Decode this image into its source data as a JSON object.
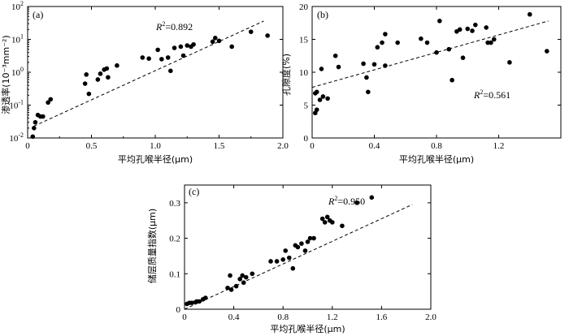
{
  "chart_data": [
    {
      "type": "scatter",
      "panel": "(a)",
      "xlabel": "平均孔喉半径(μm)",
      "ylabel": "渗透率(10⁻³mm⁻²)",
      "xlim": [
        0,
        2.0
      ],
      "ylim": [
        0.01,
        100
      ],
      "yscale": "log",
      "xticks": [
        "0",
        "0.5",
        "1.0",
        "1.5",
        "2.0"
      ],
      "yticks": [
        {
          "base": "10",
          "exp": "-2"
        },
        {
          "base": "10",
          "exp": "-1"
        },
        {
          "base": "10",
          "exp": "0"
        },
        {
          "base": "10",
          "exp": "1"
        },
        {
          "base": "10",
          "exp": "2"
        }
      ],
      "annotation": {
        "var": "R",
        "exp": "2",
        "value": "=0.892"
      },
      "fit_line": {
        "x": [
          0.05,
          1.85
        ],
        "y": [
          0.023,
          36
        ]
      },
      "points": [
        [
          0.04,
          0.011
        ],
        [
          0.05,
          0.02
        ],
        [
          0.06,
          0.03
        ],
        [
          0.08,
          0.05
        ],
        [
          0.1,
          0.045
        ],
        [
          0.12,
          0.045
        ],
        [
          0.16,
          0.12
        ],
        [
          0.18,
          0.15
        ],
        [
          0.45,
          0.45
        ],
        [
          0.46,
          0.85
        ],
        [
          0.48,
          0.22
        ],
        [
          0.55,
          0.6
        ],
        [
          0.57,
          0.9
        ],
        [
          0.6,
          1.2
        ],
        [
          0.62,
          1.3
        ],
        [
          0.63,
          0.7
        ],
        [
          0.7,
          1.6
        ],
        [
          0.9,
          2.8
        ],
        [
          0.95,
          2.6
        ],
        [
          1.02,
          4.8
        ],
        [
          1.05,
          2.5
        ],
        [
          1.1,
          2.8
        ],
        [
          1.12,
          1.1
        ],
        [
          1.15,
          5.5
        ],
        [
          1.2,
          6.0
        ],
        [
          1.22,
          3.2
        ],
        [
          1.25,
          6.5
        ],
        [
          1.28,
          6.0
        ],
        [
          1.3,
          7.0
        ],
        [
          1.45,
          8.5
        ],
        [
          1.47,
          11.0
        ],
        [
          1.5,
          9.0
        ],
        [
          1.6,
          6.0
        ],
        [
          1.75,
          17.0
        ],
        [
          1.88,
          13.0
        ]
      ]
    },
    {
      "type": "scatter",
      "panel": "(b)",
      "xlabel": "平均孔喉半径(μm)",
      "ylabel": "孔隙度(%)",
      "xlim": [
        0,
        1.6
      ],
      "ylim": [
        0,
        20
      ],
      "xticks": [
        "0",
        "0.4",
        "0.8",
        "1.2"
      ],
      "xtick_values": [
        0,
        0.4,
        0.8,
        1.2
      ],
      "yticks": [
        "0",
        "5",
        "10",
        "15",
        "20"
      ],
      "ytick_values": [
        0,
        5,
        10,
        15,
        20
      ],
      "annotation": {
        "var": "R",
        "exp": "2",
        "value": "=0.561"
      },
      "fit_line": {
        "x": [
          0.0,
          1.52
        ],
        "y": [
          7.7,
          17.8
        ]
      },
      "points": [
        [
          0.02,
          3.8
        ],
        [
          0.02,
          6.8
        ],
        [
          0.03,
          4.3
        ],
        [
          0.03,
          7.0
        ],
        [
          0.05,
          5.8
        ],
        [
          0.07,
          6.3
        ],
        [
          0.1,
          6.0
        ],
        [
          0.06,
          10.5
        ],
        [
          0.15,
          12.5
        ],
        [
          0.17,
          10.8
        ],
        [
          0.33,
          11.3
        ],
        [
          0.35,
          9.2
        ],
        [
          0.36,
          7.0
        ],
        [
          0.4,
          11.2
        ],
        [
          0.42,
          13.8
        ],
        [
          0.45,
          14.5
        ],
        [
          0.47,
          15.8
        ],
        [
          0.47,
          11.0
        ],
        [
          0.55,
          14.5
        ],
        [
          0.7,
          15.1
        ],
        [
          0.74,
          14.5
        ],
        [
          0.8,
          13.0
        ],
        [
          0.82,
          17.8
        ],
        [
          0.88,
          13.5
        ],
        [
          0.9,
          8.8
        ],
        [
          0.93,
          16.2
        ],
        [
          0.95,
          16.5
        ],
        [
          0.97,
          12.2
        ],
        [
          1.0,
          16.6
        ],
        [
          1.03,
          16.3
        ],
        [
          1.05,
          17.2
        ],
        [
          1.12,
          16.8
        ],
        [
          1.13,
          14.5
        ],
        [
          1.15,
          14.5
        ],
        [
          1.17,
          15.0
        ],
        [
          1.27,
          11.5
        ],
        [
          1.4,
          18.8
        ],
        [
          1.51,
          13.2
        ]
      ]
    },
    {
      "type": "scatter",
      "panel": "(c)",
      "xlabel": "平均孔喉半径(μm)",
      "ylabel": "储层质量指数(μm)",
      "xlim": [
        0,
        2.0
      ],
      "ylim": [
        0,
        0.35
      ],
      "xticks": [
        "0",
        "0.4",
        "0.8",
        "1.2",
        "1.6",
        "2.0"
      ],
      "xtick_values": [
        0,
        0.4,
        0.8,
        1.2,
        1.6,
        2.0
      ],
      "yticks": [
        "0",
        "0.1",
        "0.2",
        "0.3"
      ],
      "ytick_values": [
        0,
        0.1,
        0.2,
        0.3
      ],
      "annotation": {
        "var": "R",
        "exp": "2",
        "value": "=0.950"
      },
      "fit_line": {
        "x": [
          0.0,
          1.85
        ],
        "y": [
          0.0,
          0.295
        ]
      },
      "points": [
        [
          0.02,
          0.015
        ],
        [
          0.04,
          0.018
        ],
        [
          0.06,
          0.018
        ],
        [
          0.09,
          0.02
        ],
        [
          0.1,
          0.022
        ],
        [
          0.12,
          0.022
        ],
        [
          0.15,
          0.028
        ],
        [
          0.17,
          0.032
        ],
        [
          0.35,
          0.06
        ],
        [
          0.37,
          0.095
        ],
        [
          0.38,
          0.055
        ],
        [
          0.42,
          0.065
        ],
        [
          0.45,
          0.085
        ],
        [
          0.47,
          0.095
        ],
        [
          0.48,
          0.075
        ],
        [
          0.5,
          0.09
        ],
        [
          0.55,
          0.1
        ],
        [
          0.7,
          0.135
        ],
        [
          0.75,
          0.135
        ],
        [
          0.8,
          0.14
        ],
        [
          0.82,
          0.165
        ],
        [
          0.85,
          0.145
        ],
        [
          0.88,
          0.115
        ],
        [
          0.9,
          0.18
        ],
        [
          0.92,
          0.175
        ],
        [
          0.95,
          0.185
        ],
        [
          0.98,
          0.165
        ],
        [
          1.0,
          0.19
        ],
        [
          1.02,
          0.2
        ],
        [
          1.05,
          0.2
        ],
        [
          1.12,
          0.255
        ],
        [
          1.14,
          0.245
        ],
        [
          1.16,
          0.26
        ],
        [
          1.18,
          0.25
        ],
        [
          1.2,
          0.245
        ],
        [
          1.28,
          0.235
        ],
        [
          1.4,
          0.3
        ],
        [
          1.52,
          0.315
        ]
      ]
    }
  ]
}
